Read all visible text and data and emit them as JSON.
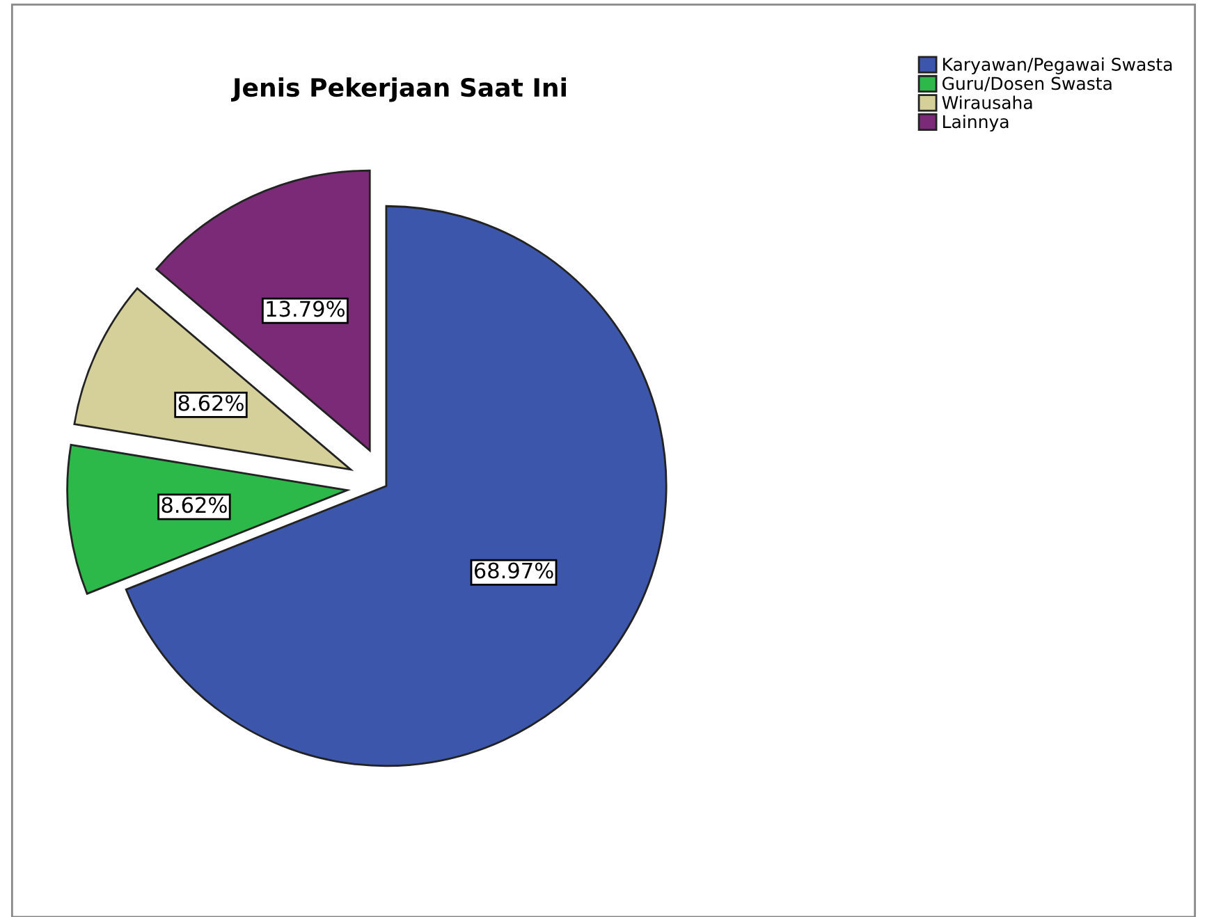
{
  "chart_data": {
    "type": "pie",
    "title": "Jenis Pekerjaan Saat Ini",
    "categories": [
      "Karyawan/Pegawai Swasta",
      "Guru/Dosen Swasta",
      "Wirausaha",
      "Lainnya"
    ],
    "values": [
      68.97,
      8.62,
      8.62,
      13.79
    ],
    "colors": [
      "#3c56ac",
      "#2db84a",
      "#d5cf99",
      "#7b2a78"
    ],
    "value_labels": [
      "68.97%",
      "8.62%",
      "8.62%",
      "13.79%"
    ],
    "legend": "top right"
  }
}
